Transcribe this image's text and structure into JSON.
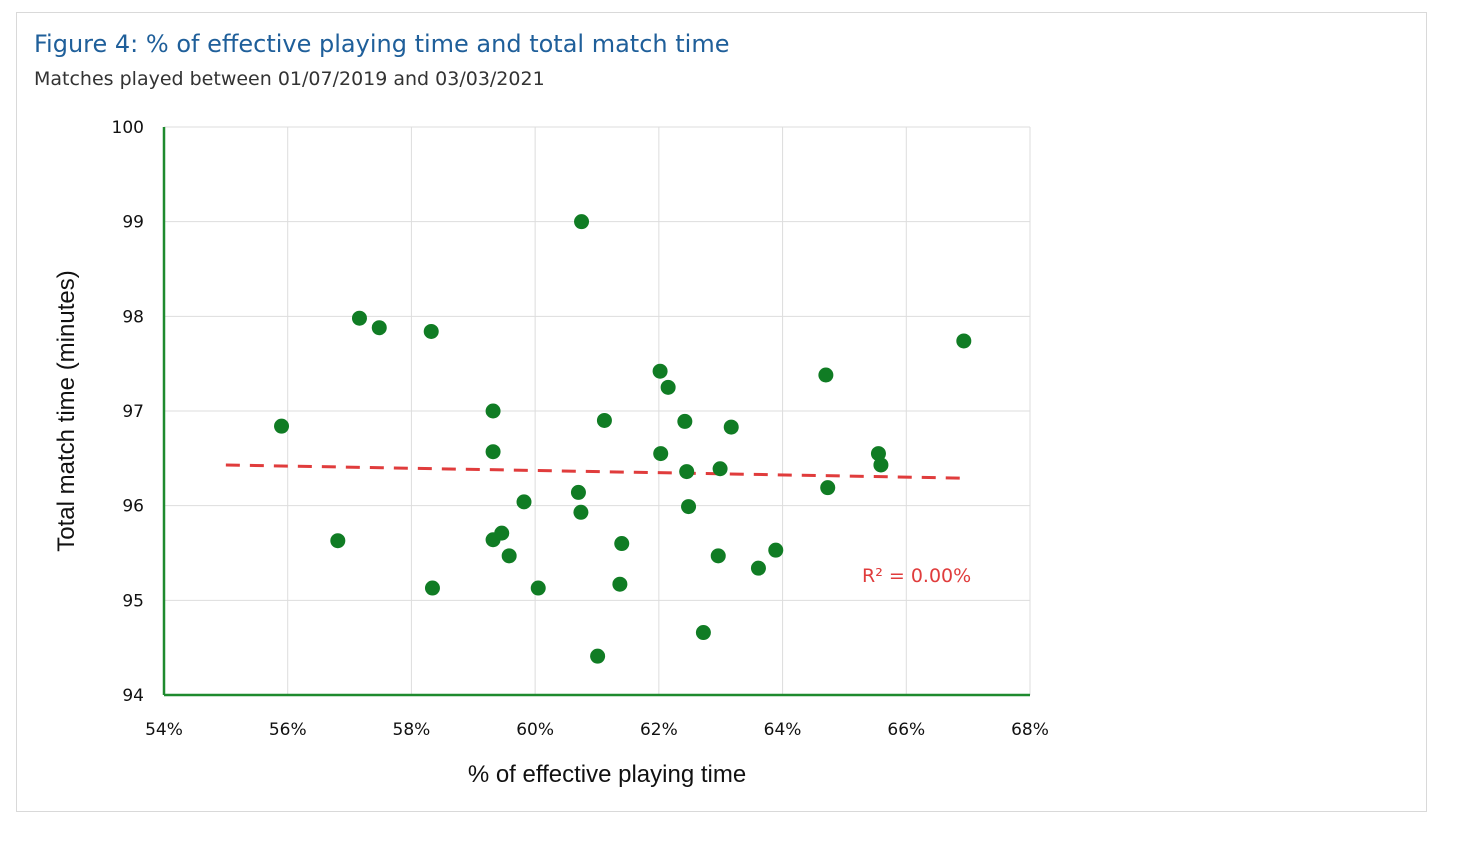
{
  "figure": {
    "title": "Figure 4: % of effective playing time and total match time",
    "subtitle": "Matches played between 01/07/2019 and 03/03/2021"
  },
  "colors": {
    "points": "#107c24",
    "axis": "#1e8a2e",
    "grid": "#dddddd",
    "trendline": "#e03c3c",
    "title": "#1f5f9a"
  },
  "chart_data": {
    "type": "scatter",
    "xlabel": "% of effective playing time",
    "ylabel": "Total match time (minutes)",
    "xlim": [
      0.54,
      0.68
    ],
    "ylim": [
      94,
      100
    ],
    "x_ticks": [
      "54%",
      "56%",
      "58%",
      "60%",
      "62%",
      "64%",
      "66%",
      "68%"
    ],
    "y_ticks": [
      "94",
      "95",
      "96",
      "97",
      "98",
      "99",
      "100"
    ],
    "grid": true,
    "trendline": {
      "style": "dashed",
      "x": [
        0.55,
        0.67
      ],
      "y": [
        96.43,
        96.29
      ],
      "label": "R² = 0.00%"
    },
    "points": [
      {
        "x": 0.559,
        "y": 96.84
      },
      {
        "x": 0.5681,
        "y": 95.63
      },
      {
        "x": 0.5716,
        "y": 97.98
      },
      {
        "x": 0.5748,
        "y": 97.88
      },
      {
        "x": 0.5832,
        "y": 97.84
      },
      {
        "x": 0.5834,
        "y": 95.13
      },
      {
        "x": 0.5932,
        "y": 97.0
      },
      {
        "x": 0.5932,
        "y": 96.57
      },
      {
        "x": 0.5932,
        "y": 95.64
      },
      {
        "x": 0.5946,
        "y": 95.71
      },
      {
        "x": 0.5958,
        "y": 95.47
      },
      {
        "x": 0.5982,
        "y": 96.04
      },
      {
        "x": 0.6005,
        "y": 95.13
      },
      {
        "x": 0.607,
        "y": 96.14
      },
      {
        "x": 0.6074,
        "y": 95.93
      },
      {
        "x": 0.6075,
        "y": 99.0
      },
      {
        "x": 0.6101,
        "y": 94.41
      },
      {
        "x": 0.6112,
        "y": 96.9
      },
      {
        "x": 0.6137,
        "y": 95.17
      },
      {
        "x": 0.614,
        "y": 95.6
      },
      {
        "x": 0.6202,
        "y": 97.42
      },
      {
        "x": 0.6203,
        "y": 96.55
      },
      {
        "x": 0.6215,
        "y": 97.25
      },
      {
        "x": 0.6242,
        "y": 96.89
      },
      {
        "x": 0.6245,
        "y": 96.36
      },
      {
        "x": 0.6248,
        "y": 95.99
      },
      {
        "x": 0.6272,
        "y": 94.66
      },
      {
        "x": 0.6296,
        "y": 95.47
      },
      {
        "x": 0.6299,
        "y": 96.39
      },
      {
        "x": 0.6317,
        "y": 96.83
      },
      {
        "x": 0.6361,
        "y": 95.34
      },
      {
        "x": 0.6389,
        "y": 95.53
      },
      {
        "x": 0.647,
        "y": 97.38
      },
      {
        "x": 0.6473,
        "y": 96.19
      },
      {
        "x": 0.6555,
        "y": 96.55
      },
      {
        "x": 0.6559,
        "y": 96.43
      },
      {
        "x": 0.6693,
        "y": 97.74
      }
    ]
  }
}
